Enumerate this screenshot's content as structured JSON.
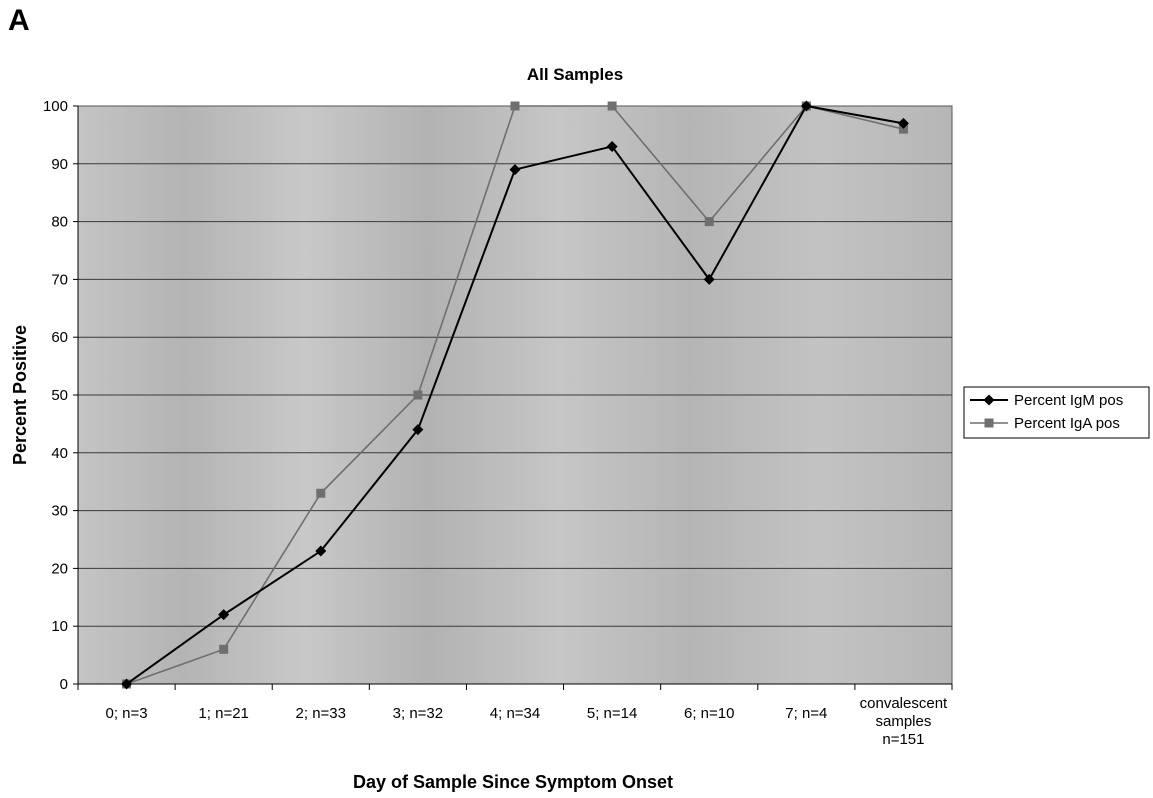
{
  "panel_label": "A",
  "chart_data": {
    "type": "line",
    "title": "All Samples",
    "xlabel": "Day of Sample Since Symptom Onset",
    "ylabel": "Percent Positive",
    "ylim": [
      0,
      100
    ],
    "yticks": [
      0,
      10,
      20,
      30,
      40,
      50,
      60,
      70,
      80,
      90,
      100
    ],
    "grid": true,
    "legend_position": "right",
    "categories": [
      "0; n=3",
      "1; n=21",
      "2; n=33",
      "3; n=32",
      "4; n=34",
      "5; n=14",
      "6; n=10",
      "7; n=4",
      "convalescent samples n=151"
    ],
    "category_lines": [
      [
        "0; n=3"
      ],
      [
        "1; n=21"
      ],
      [
        "2; n=33"
      ],
      [
        "3; n=32"
      ],
      [
        "4; n=34"
      ],
      [
        "5; n=14"
      ],
      [
        "6; n=10"
      ],
      [
        "7; n=4"
      ],
      [
        "convalescent",
        "samples",
        "n=151"
      ]
    ],
    "series": [
      {
        "name": "Percent IgM pos",
        "marker": "diamond",
        "color": "#000000",
        "values": [
          0,
          12,
          23,
          44,
          89,
          93,
          70,
          100,
          97
        ]
      },
      {
        "name": "Percent IgA pos",
        "marker": "square",
        "color": "#6f6f6f",
        "values": [
          0,
          6,
          33,
          50,
          100,
          100,
          80,
          100,
          96
        ]
      }
    ]
  }
}
